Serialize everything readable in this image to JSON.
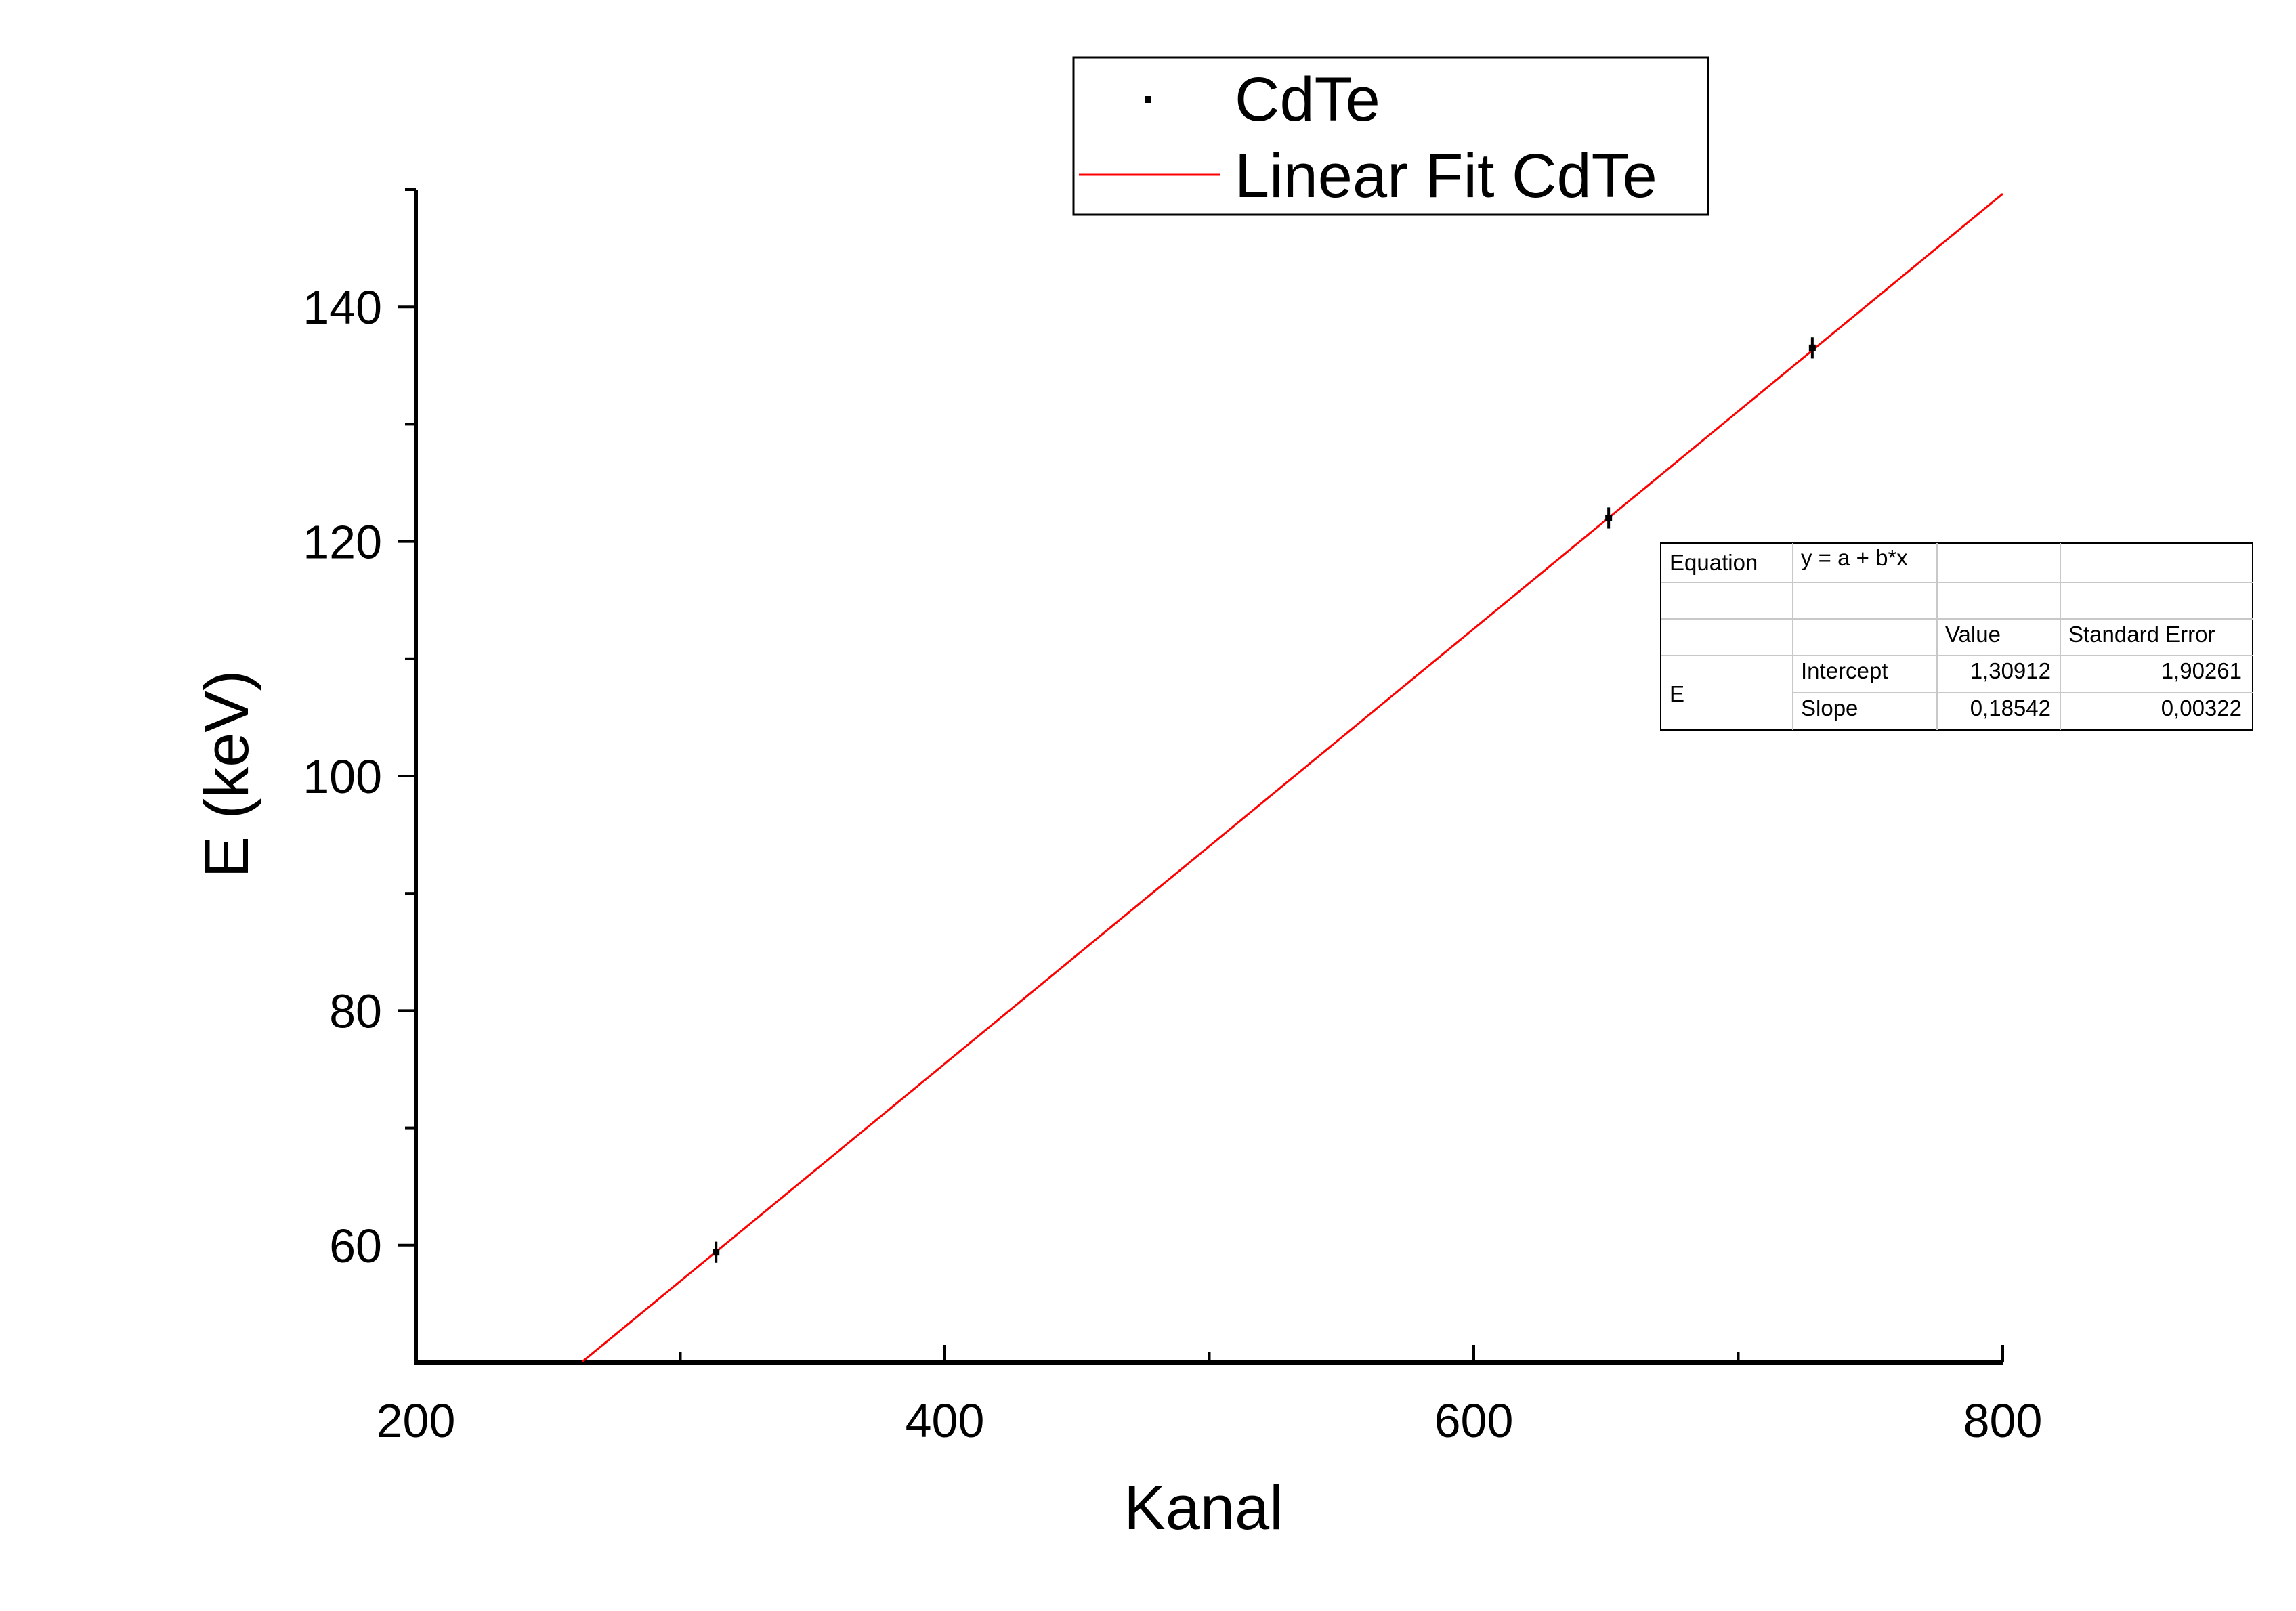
{
  "chart_data": {
    "type": "scatter",
    "xlabel": "Kanal",
    "ylabel": "E (keV)",
    "xlim": [
      200,
      800
    ],
    "ylim": [
      50,
      150
    ],
    "x_ticks": [
      200,
      400,
      600,
      800
    ],
    "y_ticks": [
      60,
      80,
      100,
      120,
      140
    ],
    "x_tick_labels": [
      "200",
      "400",
      "600",
      "800"
    ],
    "y_tick_labels": [
      "60",
      "80",
      "100",
      "120",
      "140"
    ],
    "grid": false,
    "legend_position": "top-center",
    "series": [
      {
        "name": "CdTe",
        "kind": "points",
        "color": "#000000",
        "points": [
          {
            "x": 313.5,
            "y": 59.4,
            "yerr": 0.9
          },
          {
            "x": 651.0,
            "y": 122.0,
            "yerr": 0.9
          },
          {
            "x": 728.0,
            "y": 136.5,
            "yerr": 0.9
          }
        ]
      },
      {
        "name": "Linear Fit CdTe",
        "kind": "line",
        "color": "#ff0000",
        "intercept": 1.30912,
        "slope": 0.18542,
        "x_range": [
          263,
          800
        ]
      }
    ],
    "fit_table": {
      "equation_label": "Equation",
      "equation": "y = a + b*x",
      "col_value": "Value",
      "col_error": "Standard Error",
      "row_group": "E",
      "rows": [
        {
          "param": "Intercept",
          "value": "1,30912",
          "error": "1,90261"
        },
        {
          "param": "Slope",
          "value": "0,18542",
          "error": "0,00322"
        }
      ]
    }
  }
}
